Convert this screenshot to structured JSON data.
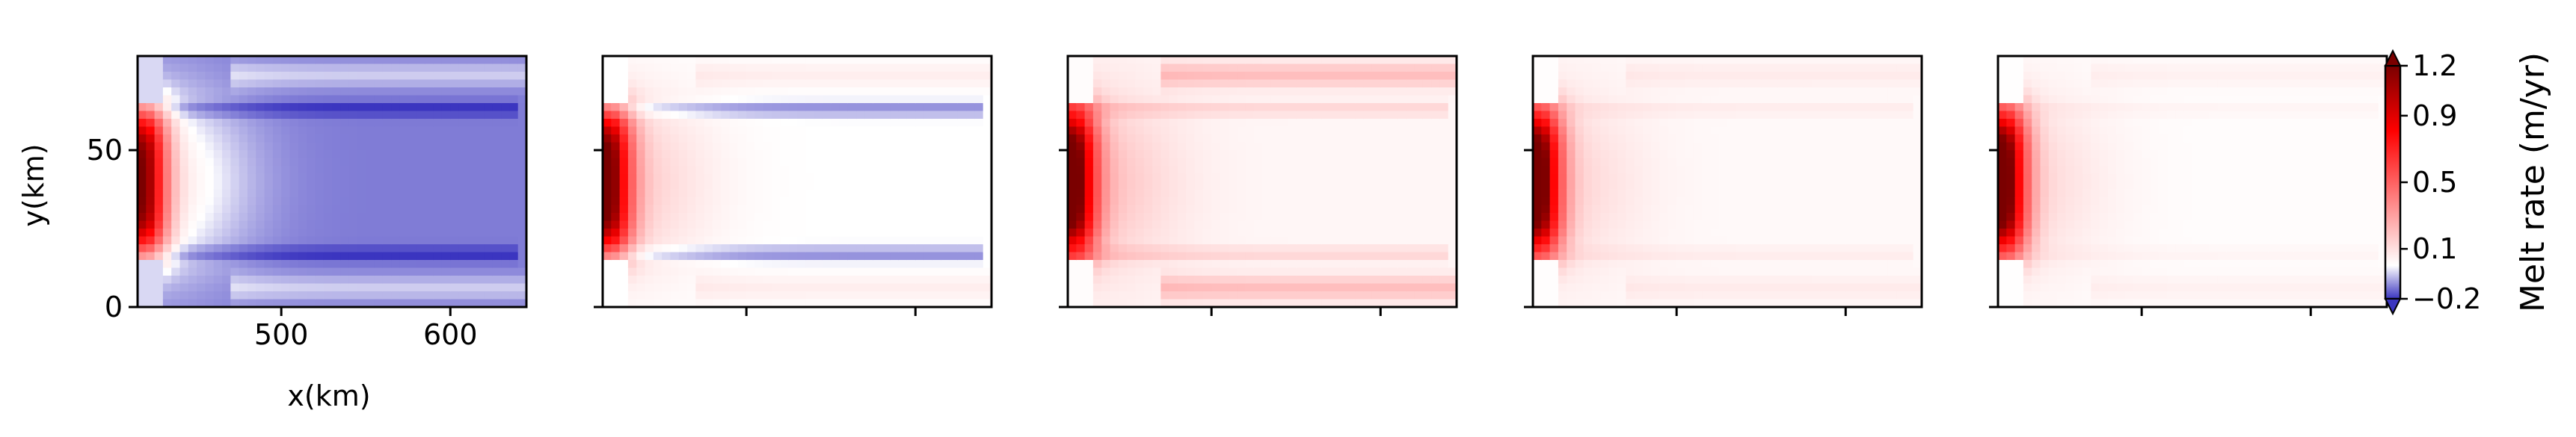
{
  "chart_data": {
    "type": "heatmap",
    "xlabel": "x(km)",
    "ylabel": "y(km)",
    "x_ticks": [
      500,
      600
    ],
    "y_ticks": [
      0,
      50
    ],
    "xlim": [
      415,
      645
    ],
    "ylim": [
      0,
      80
    ],
    "ice_front_x": 418,
    "panels": [
      {
        "name": "panel-1",
        "hotspot_peak": 1.2,
        "halo": 0.45,
        "far_field": -0.13,
        "shear_bands": -0.08,
        "edge_bands": 0.08
      },
      {
        "name": "panel-2",
        "hotspot_peak": 1.25,
        "halo": 0.4,
        "far_field": 0.0,
        "shear_bands": -0.12,
        "edge_bands": 0.06
      },
      {
        "name": "panel-3",
        "hotspot_peak": 1.3,
        "halo": 0.45,
        "far_field": 0.03,
        "shear_bands": 0.12,
        "edge_bands": 0.2
      },
      {
        "name": "panel-4",
        "hotspot_peak": 1.3,
        "halo": 0.3,
        "far_field": 0.02,
        "shear_bands": 0.05,
        "edge_bands": 0.05
      },
      {
        "name": "panel-5",
        "hotspot_peak": 1.3,
        "halo": 0.3,
        "far_field": 0.01,
        "shear_bands": 0.03,
        "edge_bands": 0.04
      }
    ],
    "colorbar": {
      "label": "Melt rate (m/yr)",
      "ticks": [
        1.2,
        0.9,
        0.5,
        0.1,
        -0.2
      ],
      "range": [
        -0.2,
        1.2
      ],
      "colors": {
        "low": "#3b35c0",
        "zero": "#ffffff",
        "mid": "#ff0000",
        "high": "#7a0000"
      }
    }
  }
}
